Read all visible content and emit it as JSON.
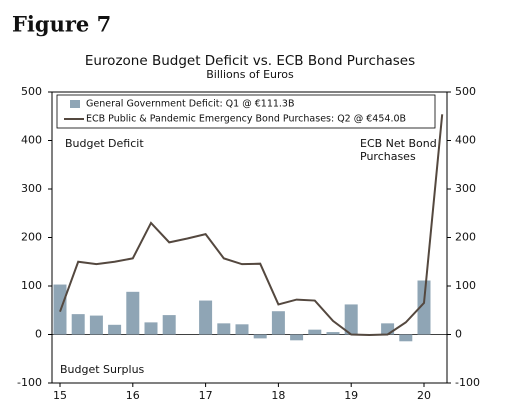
{
  "figure_label": "Figure 7",
  "chart_data": {
    "type": "bar_line",
    "title": "Eurozone Budget Deficit vs. ECB Bond Purchases",
    "subtitle": "Billions of Euros",
    "categories": [
      "15",
      null,
      null,
      null,
      "16",
      null,
      null,
      null,
      "17",
      null,
      null,
      null,
      "18",
      null,
      null,
      null,
      "19",
      null,
      null,
      null,
      "20",
      null
    ],
    "series": [
      {
        "name": "General Government Deficit: Q1 @ €111.3B",
        "type": "bar",
        "color": "#8fa5b5",
        "values": [
          103,
          42,
          39,
          20,
          88,
          25,
          40,
          0,
          70,
          23,
          21,
          -8,
          48,
          -12,
          10,
          5,
          62,
          0,
          23,
          -14,
          111.3,
          null
        ]
      },
      {
        "name": "ECB Public & Pandemic Emergency Bond Purchases: Q2 @ €454.0B",
        "type": "line",
        "color": "#54483f",
        "values": [
          47,
          150,
          145,
          150,
          157,
          230,
          190,
          198,
          207,
          157,
          145,
          146,
          62,
          72,
          70,
          28,
          0,
          -1,
          0,
          25,
          65,
          454.0
        ]
      }
    ],
    "ylim": [
      -100,
      500
    ],
    "yticks": [
      -100,
      0,
      100,
      200,
      300,
      400,
      500
    ],
    "y2lim": [
      -100,
      500
    ],
    "y2ticks": [
      -100,
      0,
      100,
      200,
      300,
      400,
      500
    ],
    "annotations": [
      "Budget Deficit",
      "Budget Surplus",
      [
        "ECB Net Bond",
        "Purchases"
      ]
    ]
  }
}
